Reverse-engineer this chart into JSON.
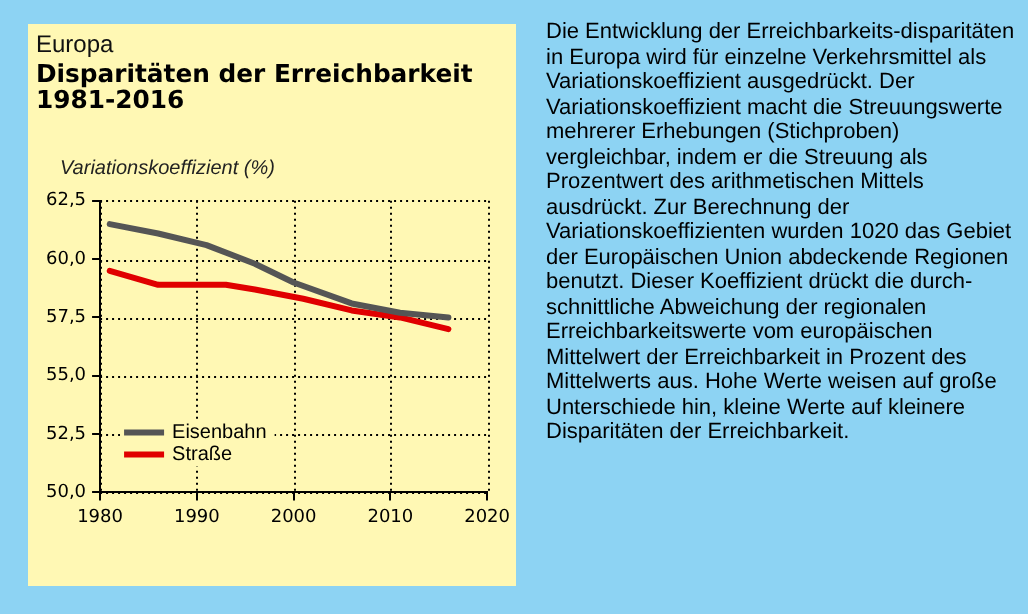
{
  "chart_data": {
    "type": "line",
    "subtitle": "Europa",
    "title": "Disparitäten der Erreichbarkeit 1981-2016",
    "ylabel": "Variationskoeffizient (%)",
    "series": [
      {
        "name": "Eisenbahn",
        "color": "#555555",
        "x": [
          1981,
          1986,
          1991,
          1996,
          2000,
          2006,
          2011,
          2016
        ],
        "values": [
          61.5,
          61.1,
          60.6,
          59.8,
          59.0,
          58.1,
          57.7,
          57.5
        ]
      },
      {
        "name": "Straße",
        "color": "#e00000",
        "x": [
          1981,
          1986,
          1993,
          1996,
          2001,
          2006,
          2011,
          2016
        ],
        "values": [
          59.5,
          58.9,
          58.9,
          58.7,
          58.3,
          57.8,
          57.5,
          57.0
        ]
      }
    ],
    "xlim": [
      1980,
      2020
    ],
    "xticks": [
      1980,
      1990,
      2000,
      2010,
      2020
    ],
    "ylim": [
      50,
      62.5
    ],
    "yticks": [
      {
        "value": 50,
        "label": "50,0"
      },
      {
        "value": 52.5,
        "label": "52,5"
      },
      {
        "value": 55,
        "label": "55,0"
      },
      {
        "value": 57.5,
        "label": "57,5"
      },
      {
        "value": 60,
        "label": "60,0"
      },
      {
        "value": 62.5,
        "label": "62,5"
      }
    ],
    "grid": true,
    "legend": "bottom left",
    "line_style": "solid",
    "marker": "none",
    "annotations": [
      "Die Entwicklung der Erreichbarkeits-disparitäten in Europa wird für einzelne Verkehrsmittel als Variationskoeffizient ausgedrückt. Der Variationskoeffizient macht die Streuungswerte mehrerer Erhebungen (Stichproben) vergleichbar, indem er die Streuung als Prozentwert des arithmetischen Mittels ausdrückt. Zur Berechnung der Variationskoeffizienten wurden 1020 das Gebiet der Europäischen Union abdeckende Regionen benutzt. Dieser Koeffizient drückt die durch-schnittliche Abweichung der regionalen Erreichbarkeitswerte vom europäischen Mittelwert der Erreichbarkeit in Prozent des Mittelwerts aus. Hohe Werte weisen auf große Unterschiede hin, kleine Werte auf kleinere Disparitäten der Erreichbarkeit."
    ]
  }
}
